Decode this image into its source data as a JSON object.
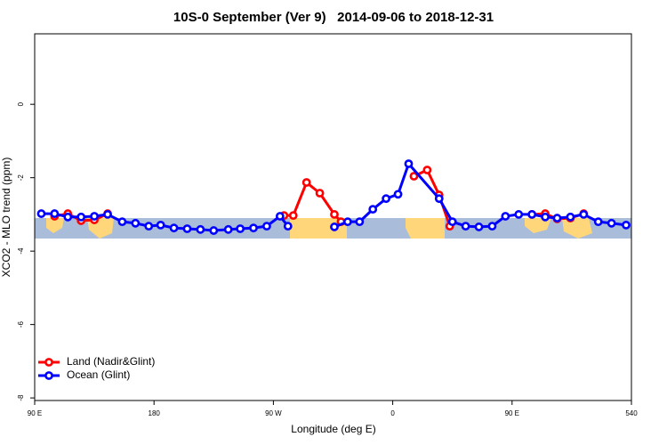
{
  "chart_data": {
    "type": "line",
    "title": "10S-0 September (Ver 9)   2014-09-06 to 2018-12-31",
    "x_label": "Longitude (deg E)",
    "y_label": "XCO2 - MLO trend (ppm)",
    "xlim": [
      90,
      540
    ],
    "ylim": [
      -8.07,
      1.92
    ],
    "xticks": [
      {
        "value": 90,
        "label": "90 E"
      },
      180,
      {
        "value": 270,
        "label": "90 W"
      },
      {
        "value": 360,
        "label": "0"
      },
      {
        "value": 450,
        "label": "90 E"
      },
      540
    ],
    "yticks": [
      0,
      -2,
      -4,
      -6,
      -8
    ],
    "legend": "bottom-left",
    "series": [
      {
        "name": "Land (Nadir&Glint)",
        "color": "#ff0000",
        "x": [
          105,
          115,
          125,
          135,
          145,
          null,
          278,
          285,
          295,
          305,
          316,
          321,
          null,
          376,
          386,
          395,
          403,
          null,
          465,
          475,
          484,
          494,
          504
        ],
        "values": [
          -3.05,
          -2.98,
          -3.17,
          -3.15,
          -2.98,
          null,
          -3.03,
          -3.03,
          -2.13,
          -2.42,
          -3.0,
          -3.2,
          null,
          -1.96,
          -1.79,
          -2.47,
          -3.32,
          null,
          -3.0,
          -2.98,
          -3.12,
          -3.1,
          -2.98
        ]
      },
      {
        "name": "Ocean (Glint)",
        "color": "#0000ff",
        "x": [
          95,
          105,
          115,
          125,
          135,
          145,
          156,
          166,
          176,
          185,
          195,
          205,
          215,
          225,
          236,
          245,
          255,
          265,
          275,
          281,
          null,
          316,
          326,
          335,
          345,
          355,
          364,
          372,
          395,
          405,
          415,
          425,
          435,
          445,
          455,
          465,
          475,
          484,
          494,
          504,
          515,
          525,
          536
        ],
        "values": [
          -2.98,
          -2.98,
          -3.07,
          -3.07,
          -3.05,
          -3.0,
          -3.2,
          -3.24,
          -3.32,
          -3.29,
          -3.37,
          -3.39,
          -3.41,
          -3.44,
          -3.41,
          -3.39,
          -3.37,
          -3.32,
          -3.05,
          -3.32,
          null,
          -3.34,
          -3.2,
          -3.2,
          -2.86,
          -2.57,
          -2.45,
          -1.62,
          -2.57,
          -3.2,
          -3.32,
          -3.34,
          -3.32,
          -3.05,
          -3.0,
          -3.0,
          -3.07,
          -3.1,
          -3.07,
          -3.0,
          -3.2,
          -3.24,
          -3.29
        ]
      }
    ]
  }
}
